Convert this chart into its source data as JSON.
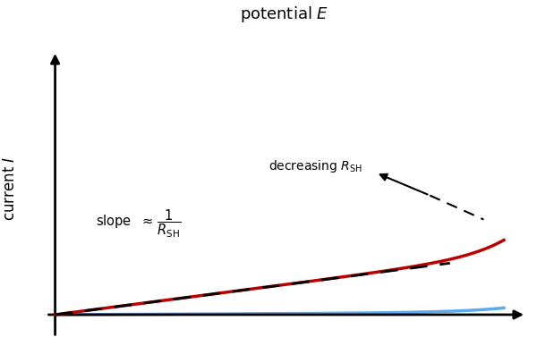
{
  "background_color": "#ffffff",
  "title": "potential $E$",
  "ylabel": "current $I$",
  "title_fontsize": 13,
  "label_fontsize": 12,
  "curve_red_color": "#bb0000",
  "curve_blue_color": "#5aaaee",
  "dashed_color": "#000000",
  "axes_color": "#000000"
}
